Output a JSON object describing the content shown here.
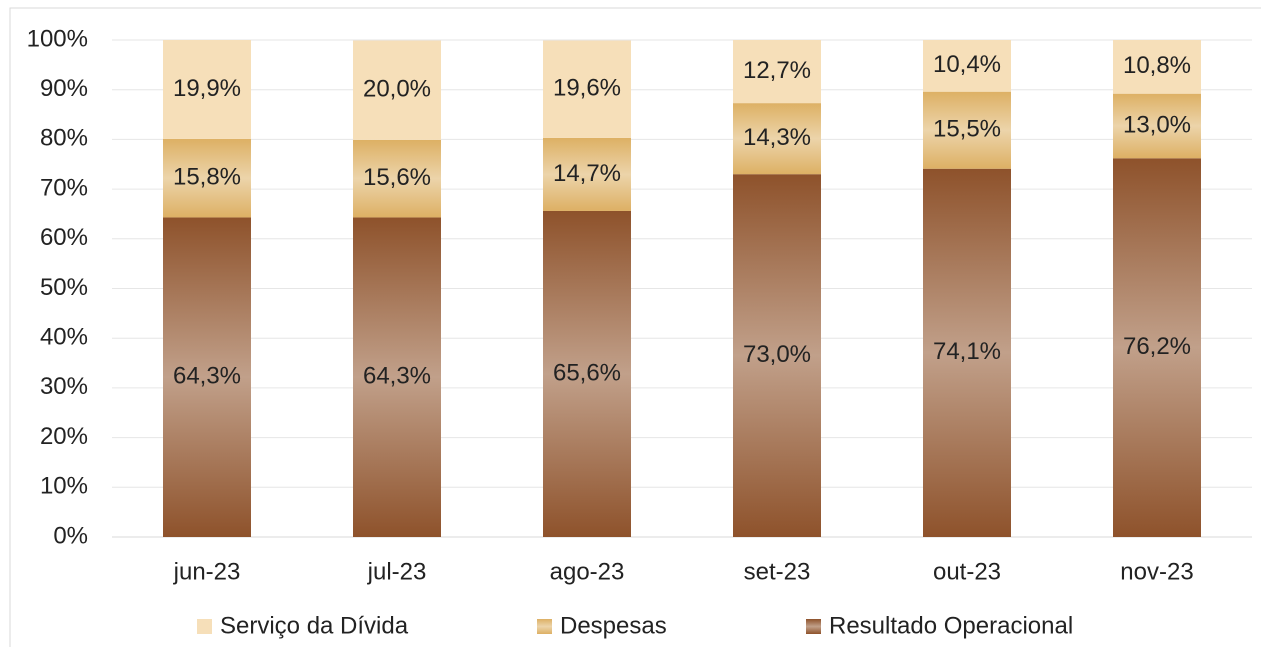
{
  "chart_data": {
    "type": "stacked_bar",
    "categories": [
      "jun-23",
      "jul-23",
      "ago-23",
      "set-23",
      "out-23",
      "nov-23"
    ],
    "series": [
      {
        "name": "Resultado Operacional",
        "color": "#8e522b",
        "gradient": true,
        "values": [
          64.3,
          64.3,
          65.6,
          73.0,
          74.1,
          76.2
        ],
        "value_labels": [
          "64,3%",
          "64,3%",
          "65,6%",
          "73,0%",
          "74,1%",
          "76,2%"
        ]
      },
      {
        "name": "Despesas",
        "color": "#ddb064",
        "gradient": true,
        "values": [
          15.8,
          15.6,
          14.7,
          14.3,
          15.5,
          13.0
        ],
        "value_labels": [
          "15,8%",
          "15,6%",
          "14,7%",
          "14,3%",
          "15,5%",
          "13,0%"
        ]
      },
      {
        "name": "Serviço da Dívida",
        "color": "#f6dfb9",
        "gradient": false,
        "values": [
          19.9,
          20.0,
          19.6,
          12.7,
          10.4,
          10.8
        ],
        "value_labels": [
          "19,9%",
          "20,0%",
          "19,6%",
          "12,7%",
          "10,4%",
          "10,8%"
        ]
      }
    ],
    "ylim": [
      0,
      100
    ],
    "yticks": [
      {
        "value": 0,
        "label": "0%"
      },
      {
        "value": 10,
        "label": "10%"
      },
      {
        "value": 20,
        "label": "20%"
      },
      {
        "value": 30,
        "label": "30%"
      },
      {
        "value": 40,
        "label": "40%"
      },
      {
        "value": 50,
        "label": "50%"
      },
      {
        "value": 60,
        "label": "60%"
      },
      {
        "value": 70,
        "label": "70%"
      },
      {
        "value": 80,
        "label": "80%"
      },
      {
        "value": 90,
        "label": "90%"
      },
      {
        "value": 100,
        "label": "100%"
      }
    ],
    "grid": true,
    "legend": "bottom"
  }
}
